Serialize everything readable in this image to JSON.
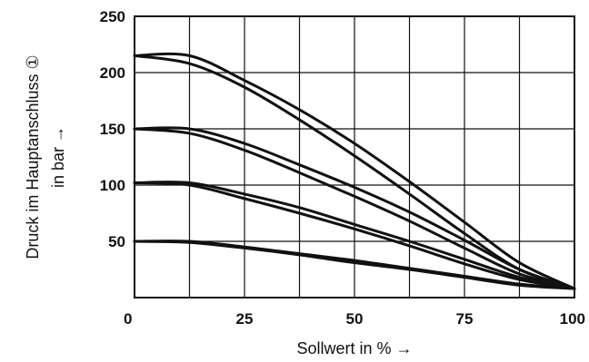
{
  "chart_data": {
    "type": "line",
    "xlabel": "Sollwert in % →",
    "ylabel_line1": "Druck im Hauptanschluss ①",
    "ylabel_line2": "in bar →",
    "xlim": [
      0,
      100
    ],
    "ylim": [
      0,
      250
    ],
    "x_ticks": [
      0,
      25,
      50,
      75,
      100
    ],
    "y_ticks": [
      50,
      100,
      150,
      200,
      250
    ],
    "x_gridlines": [
      0,
      12.5,
      25,
      37.5,
      50,
      62.5,
      75,
      87.5,
      100
    ],
    "y_gridlines": [
      0,
      50,
      100,
      150,
      200,
      250
    ],
    "grid": true,
    "series": [
      {
        "x": [
          0,
          12.5,
          25,
          37.5,
          50,
          62.5,
          75,
          87.5,
          100
        ],
        "y": [
          215,
          215,
          193,
          167,
          137,
          103,
          67,
          31,
          8
        ]
      },
      {
        "x": [
          0,
          12.5,
          25,
          37.5,
          50,
          62.5,
          75,
          87.5,
          100
        ],
        "y": [
          215,
          208,
          187,
          158,
          126,
          92,
          57,
          25,
          8
        ]
      },
      {
        "x": [
          0,
          12.5,
          25,
          37.5,
          50,
          62.5,
          75,
          87.5,
          100
        ],
        "y": [
          150,
          150,
          137,
          118,
          98,
          76,
          51,
          25,
          8
        ]
      },
      {
        "x": [
          0,
          12.5,
          25,
          37.5,
          50,
          62.5,
          75,
          87.5,
          100
        ],
        "y": [
          150,
          146,
          131,
          111,
          90,
          68,
          44,
          21,
          8
        ]
      },
      {
        "x": [
          0,
          12.5,
          25,
          37.5,
          50,
          62.5,
          75,
          87.5,
          100
        ],
        "y": [
          102,
          102,
          92,
          80,
          65,
          50,
          34,
          18,
          8
        ]
      },
      {
        "x": [
          0,
          12.5,
          25,
          37.5,
          50,
          62.5,
          75,
          87.5,
          100
        ],
        "y": [
          102,
          100,
          88,
          75,
          61,
          46,
          30,
          16,
          8
        ]
      },
      {
        "x": [
          0,
          12.5,
          25,
          37.5,
          50,
          62.5,
          75,
          87.5,
          100
        ],
        "y": [
          50,
          50,
          45,
          39,
          33,
          26,
          19,
          12,
          8
        ]
      },
      {
        "x": [
          0,
          12.5,
          25,
          37.5,
          50,
          62.5,
          75,
          87.5,
          100
        ],
        "y": [
          50,
          49,
          44,
          38,
          31,
          25,
          18,
          11,
          8
        ]
      }
    ]
  }
}
